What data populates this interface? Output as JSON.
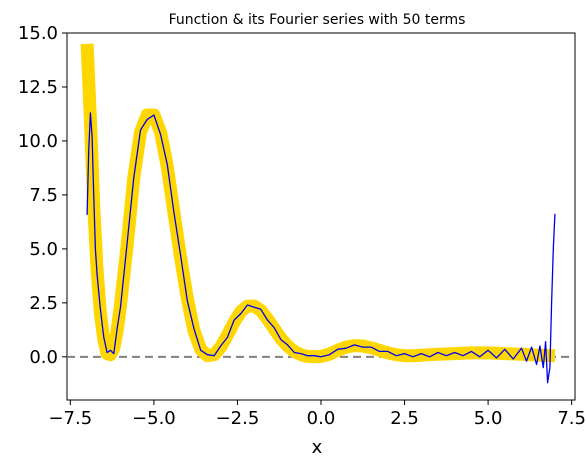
{
  "chart_data": {
    "type": "line",
    "title": "Function & its Fourier series with 50 terms",
    "xlabel": "x",
    "ylabel": "",
    "xlim": [
      -7.6,
      7.6
    ],
    "ylim": [
      -2.0,
      15.0
    ],
    "x_ticks": [
      -7.5,
      -5.0,
      -2.5,
      0.0,
      2.5,
      5.0,
      7.5
    ],
    "x_tick_labels": [
      "−7.5",
      "−5.0",
      "−2.5",
      "0.0",
      "2.5",
      "5.0",
      "7.5"
    ],
    "y_ticks": [
      0.0,
      2.5,
      5.0,
      7.5,
      10.0,
      12.5,
      15.0
    ],
    "y_tick_labels": [
      "0.0",
      "2.5",
      "5.0",
      "7.5",
      "10.0",
      "12.5",
      "15.0"
    ],
    "grid": false,
    "colors": {
      "function": "#FFD700",
      "fourier": "#0000EE",
      "zero_line": "#808080"
    },
    "reference_line": {
      "y": 0,
      "style": "dashed"
    },
    "series": [
      {
        "role": "function",
        "x": [
          -7.0,
          -6.9,
          -6.8,
          -6.7,
          -6.6,
          -6.5,
          -6.4,
          -6.3,
          -6.2,
          -6.1,
          -6.0,
          -5.8,
          -5.6,
          -5.4,
          -5.2,
          -5.0,
          -4.8,
          -4.6,
          -4.4,
          -4.2,
          -4.0,
          -3.8,
          -3.6,
          -3.4,
          -3.2,
          -3.0,
          -2.8,
          -2.6,
          -2.4,
          -2.2,
          -2.0,
          -1.8,
          -1.6,
          -1.4,
          -1.2,
          -1.0,
          -0.8,
          -0.6,
          -0.4,
          -0.2,
          0.0,
          0.25,
          0.5,
          0.75,
          1.0,
          1.25,
          1.5,
          1.75,
          2.0,
          2.25,
          2.5,
          2.75,
          3.0,
          3.25,
          3.5,
          4.0,
          4.5,
          5.0,
          5.5,
          6.0,
          6.5,
          7.0
        ],
        "y": [
          14.5,
          11.0,
          7.0,
          4.0,
          2.0,
          0.8,
          0.15,
          0.1,
          0.4,
          1.2,
          2.4,
          5.2,
          8.3,
          10.4,
          11.2,
          11.2,
          10.4,
          8.8,
          6.7,
          4.6,
          2.7,
          1.2,
          0.35,
          0.05,
          0.1,
          0.45,
          1.0,
          1.6,
          2.1,
          2.35,
          2.35,
          2.15,
          1.75,
          1.3,
          0.85,
          0.5,
          0.25,
          0.1,
          0.02,
          0.0,
          0.02,
          0.12,
          0.3,
          0.45,
          0.52,
          0.5,
          0.42,
          0.3,
          0.18,
          0.1,
          0.05,
          0.05,
          0.07,
          0.1,
          0.12,
          0.15,
          0.18,
          0.18,
          0.15,
          0.12,
          0.08,
          0.05
        ]
      },
      {
        "role": "fourier",
        "x": [
          -7.0,
          -6.95,
          -6.9,
          -6.85,
          -6.8,
          -6.75,
          -6.7,
          -6.6,
          -6.5,
          -6.4,
          -6.3,
          -6.2,
          -6.1,
          -6.0,
          -5.8,
          -5.6,
          -5.4,
          -5.2,
          -5.0,
          -4.8,
          -4.6,
          -4.4,
          -4.2,
          -4.0,
          -3.8,
          -3.6,
          -3.4,
          -3.2,
          -3.0,
          -2.8,
          -2.6,
          -2.4,
          -2.2,
          -2.0,
          -1.8,
          -1.6,
          -1.4,
          -1.2,
          -1.0,
          -0.8,
          -0.6,
          -0.4,
          -0.2,
          0.0,
          0.25,
          0.5,
          0.75,
          1.0,
          1.25,
          1.5,
          1.75,
          2.0,
          2.25,
          2.5,
          2.75,
          3.0,
          3.25,
          3.5,
          3.75,
          4.0,
          4.25,
          4.5,
          4.75,
          5.0,
          5.25,
          5.5,
          5.75,
          6.0,
          6.15,
          6.3,
          6.45,
          6.55,
          6.65,
          6.72,
          6.78,
          6.85,
          6.9,
          6.95,
          7.0
        ],
        "y": [
          6.6,
          9.5,
          11.3,
          10.2,
          7.5,
          5.0,
          3.8,
          2.2,
          0.9,
          0.2,
          0.3,
          0.15,
          1.3,
          2.3,
          5.3,
          8.3,
          10.5,
          11.0,
          11.2,
          10.3,
          8.9,
          6.7,
          4.7,
          2.6,
          1.3,
          0.3,
          0.1,
          0.05,
          0.5,
          0.9,
          1.7,
          2.0,
          2.4,
          2.3,
          2.2,
          1.7,
          1.35,
          0.8,
          0.55,
          0.2,
          0.15,
          0.05,
          0.05,
          0.0,
          0.1,
          0.35,
          0.4,
          0.55,
          0.45,
          0.45,
          0.25,
          0.25,
          0.05,
          0.15,
          0.0,
          0.15,
          0.0,
          0.2,
          0.05,
          0.2,
          0.05,
          0.25,
          0.0,
          0.3,
          -0.05,
          0.35,
          -0.1,
          0.4,
          -0.2,
          0.45,
          -0.35,
          0.5,
          -0.5,
          0.7,
          -1.2,
          -0.5,
          2.5,
          5.0,
          6.6
        ]
      }
    ]
  }
}
